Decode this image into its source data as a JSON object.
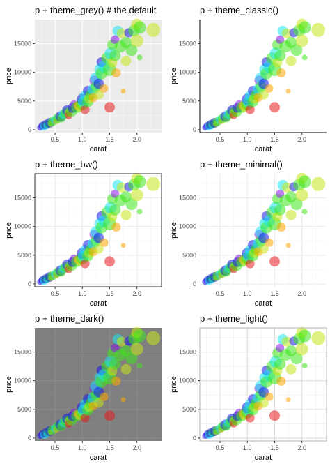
{
  "chart_data": {
    "type": "scatter",
    "xlabel": "carat",
    "ylabel": "price",
    "xlim": [
      0.13,
      2.45
    ],
    "ylim": [
      -500,
      19200
    ],
    "xticks": [
      0.5,
      1.0,
      1.5,
      2.0
    ],
    "xtick_labels": [
      "0.5",
      "1.0",
      "1.5",
      "2.0"
    ],
    "yticks": [
      0,
      5000,
      10000,
      15000
    ],
    "ytick_labels": [
      "0",
      "5000",
      "10000",
      "15000"
    ],
    "color_encoding": "rainbow hue (red, orange, yellow, green, cyan, blue, violet)",
    "size_encoding": "point size varies",
    "point_opacity": 0.55,
    "points": [
      {
        "x": 0.23,
        "y": 370,
        "c": "blue",
        "s": 4.5
      },
      {
        "x": 0.25,
        "y": 520,
        "c": "violet",
        "s": 4.0
      },
      {
        "x": 0.27,
        "y": 680,
        "c": "blue",
        "s": 5.5
      },
      {
        "x": 0.3,
        "y": 560,
        "c": "cyan",
        "s": 6.0
      },
      {
        "x": 0.31,
        "y": 820,
        "c": "green",
        "s": 5.0
      },
      {
        "x": 0.33,
        "y": 900,
        "c": "blue",
        "s": 6.5
      },
      {
        "x": 0.35,
        "y": 720,
        "c": "cyan",
        "s": 5.0
      },
      {
        "x": 0.38,
        "y": 1050,
        "c": "green",
        "s": 6.0
      },
      {
        "x": 0.4,
        "y": 1200,
        "c": "blue",
        "s": 7.0
      },
      {
        "x": 0.42,
        "y": 1000,
        "c": "yellow",
        "s": 4.0
      },
      {
        "x": 0.45,
        "y": 1400,
        "c": "green",
        "s": 6.5
      },
      {
        "x": 0.5,
        "y": 1700,
        "c": "cyan",
        "s": 6.0
      },
      {
        "x": 0.52,
        "y": 1500,
        "c": "orange",
        "s": 4.5
      },
      {
        "x": 0.55,
        "y": 2000,
        "c": "green",
        "s": 7.0
      },
      {
        "x": 0.6,
        "y": 2300,
        "c": "blue",
        "s": 7.5
      },
      {
        "x": 0.62,
        "y": 2000,
        "c": "green",
        "s": 6.0
      },
      {
        "x": 0.65,
        "y": 2700,
        "c": "cyan",
        "s": 6.5
      },
      {
        "x": 0.7,
        "y": 2900,
        "c": "green",
        "s": 7.5
      },
      {
        "x": 0.72,
        "y": 3400,
        "c": "blue",
        "s": 7.0
      },
      {
        "x": 0.75,
        "y": 3000,
        "c": "yellow",
        "s": 6.0
      },
      {
        "x": 0.75,
        "y": 2500,
        "c": "red",
        "s": 5.5
      },
      {
        "x": 0.8,
        "y": 3200,
        "c": "green",
        "s": 8.0
      },
      {
        "x": 0.82,
        "y": 3800,
        "c": "blue",
        "s": 7.0
      },
      {
        "x": 0.85,
        "y": 4400,
        "c": "violet",
        "s": 6.0
      },
      {
        "x": 0.9,
        "y": 3900,
        "c": "green",
        "s": 8.0
      },
      {
        "x": 0.92,
        "y": 4200,
        "c": "orange",
        "s": 6.0
      },
      {
        "x": 0.95,
        "y": 4000,
        "c": "yellow",
        "s": 7.0
      },
      {
        "x": 1.0,
        "y": 4500,
        "c": "green",
        "s": 9.0
      },
      {
        "x": 1.0,
        "y": 5300,
        "c": "blue",
        "s": 8.0
      },
      {
        "x": 1.02,
        "y": 4800,
        "c": "cyan",
        "s": 8.0
      },
      {
        "x": 1.05,
        "y": 5900,
        "c": "cyan",
        "s": 7.5
      },
      {
        "x": 1.05,
        "y": 3500,
        "c": "red",
        "s": 6.5
      },
      {
        "x": 1.1,
        "y": 4900,
        "c": "green",
        "s": 8.0
      },
      {
        "x": 1.1,
        "y": 6800,
        "c": "blue",
        "s": 7.0
      },
      {
        "x": 1.12,
        "y": 5400,
        "c": "yellow",
        "s": 7.0
      },
      {
        "x": 1.15,
        "y": 6000,
        "c": "green",
        "s": 7.5
      },
      {
        "x": 1.2,
        "y": 7000,
        "c": "cyan",
        "s": 8.0
      },
      {
        "x": 1.2,
        "y": 5600,
        "c": "orange",
        "s": 6.5
      },
      {
        "x": 1.22,
        "y": 8600,
        "c": "violet",
        "s": 7.0
      },
      {
        "x": 1.25,
        "y": 7500,
        "c": "green",
        "s": 8.0
      },
      {
        "x": 1.25,
        "y": 9000,
        "c": "cyan",
        "s": 8.5
      },
      {
        "x": 1.3,
        "y": 8000,
        "c": "blue",
        "s": 7.5
      },
      {
        "x": 1.3,
        "y": 6100,
        "c": "yellow",
        "s": 7.0
      },
      {
        "x": 1.32,
        "y": 10500,
        "c": "cyan",
        "s": 8.0
      },
      {
        "x": 1.35,
        "y": 9800,
        "c": "green",
        "s": 8.5
      },
      {
        "x": 1.35,
        "y": 11800,
        "c": "blue",
        "s": 7.0
      },
      {
        "x": 1.4,
        "y": 11000,
        "c": "cyan",
        "s": 8.5
      },
      {
        "x": 1.4,
        "y": 7200,
        "c": "orange",
        "s": 6.0
      },
      {
        "x": 1.45,
        "y": 12500,
        "c": "green",
        "s": 8.0
      },
      {
        "x": 1.5,
        "y": 10500,
        "c": "green",
        "s": 9.5
      },
      {
        "x": 1.5,
        "y": 3900,
        "c": "red",
        "s": 7.5
      },
      {
        "x": 1.52,
        "y": 13300,
        "c": "cyan",
        "s": 8.5
      },
      {
        "x": 1.55,
        "y": 14800,
        "c": "green",
        "s": 7.5
      },
      {
        "x": 1.55,
        "y": 11700,
        "c": "yellow",
        "s": 7.0
      },
      {
        "x": 1.6,
        "y": 15700,
        "c": "violet",
        "s": 6.0
      },
      {
        "x": 1.6,
        "y": 12900,
        "c": "green",
        "s": 8.0
      },
      {
        "x": 1.62,
        "y": 9900,
        "c": "orange",
        "s": 6.5
      },
      {
        "x": 1.65,
        "y": 17200,
        "c": "cyan",
        "s": 7.5
      },
      {
        "x": 1.7,
        "y": 14500,
        "c": "green",
        "s": 8.5
      },
      {
        "x": 1.72,
        "y": 16800,
        "c": "yellow",
        "s": 7.0
      },
      {
        "x": 1.75,
        "y": 6700,
        "c": "orange",
        "s": 3.5
      },
      {
        "x": 1.8,
        "y": 15200,
        "c": "green",
        "s": 8.0
      },
      {
        "x": 1.8,
        "y": 12000,
        "c": "yellow",
        "s": 7.5
      },
      {
        "x": 1.85,
        "y": 16900,
        "c": "blue",
        "s": 6.5
      },
      {
        "x": 1.9,
        "y": 13900,
        "c": "green",
        "s": 8.5
      },
      {
        "x": 1.95,
        "y": 17300,
        "c": "green",
        "s": 8.5
      },
      {
        "x": 2.0,
        "y": 18400,
        "c": "yellow",
        "s": 8.0
      },
      {
        "x": 2.0,
        "y": 15500,
        "c": "yellow",
        "s": 9.0
      },
      {
        "x": 2.05,
        "y": 17800,
        "c": "green",
        "s": 9.0
      },
      {
        "x": 2.05,
        "y": 12600,
        "c": "green",
        "s": 4.0
      },
      {
        "x": 2.3,
        "y": 17400,
        "c": "yellow",
        "s": 10.0
      }
    ],
    "panels": [
      {
        "title": "p + theme_grey() # the default",
        "theme": "grey",
        "panel_bg": "#ebebeb",
        "grid_major": "#ffffff",
        "grid_minor": "#f5f5f5",
        "axis_line": false,
        "border": false
      },
      {
        "title": "p + theme_classic()",
        "theme": "classic",
        "panel_bg": "#ffffff",
        "grid_major": "",
        "grid_minor": "",
        "axis_line": true,
        "border": false
      },
      {
        "title": "p + theme_bw()",
        "theme": "bw",
        "panel_bg": "#ffffff",
        "grid_major": "#ebebeb",
        "grid_minor": "#f4f4f4",
        "axis_line": false,
        "border": true,
        "border_color": "#333333"
      },
      {
        "title": "p + theme_minimal()",
        "theme": "minimal",
        "panel_bg": "#ffffff",
        "grid_major": "#ebebeb",
        "grid_minor": "#f4f4f4",
        "axis_line": false,
        "border": false
      },
      {
        "title": "p + theme_dark()",
        "theme": "dark",
        "panel_bg": "#7f7f7f",
        "grid_major": "#8c8c8c",
        "grid_minor": "#858585",
        "axis_line": false,
        "border": false
      },
      {
        "title": "p + theme_light()",
        "theme": "light",
        "panel_bg": "#ffffff",
        "grid_major": "#dedede",
        "grid_minor": "#ededed",
        "axis_line": false,
        "border": true,
        "border_color": "#b3b3b3"
      }
    ],
    "colors": {
      "red": "#e8191e",
      "orange": "#ffa500",
      "yellow": "#c8e61a",
      "green": "#3ee61a",
      "cyan": "#1ae6f0",
      "blue": "#1a1ae6",
      "violet": "#8a1ae6"
    }
  }
}
